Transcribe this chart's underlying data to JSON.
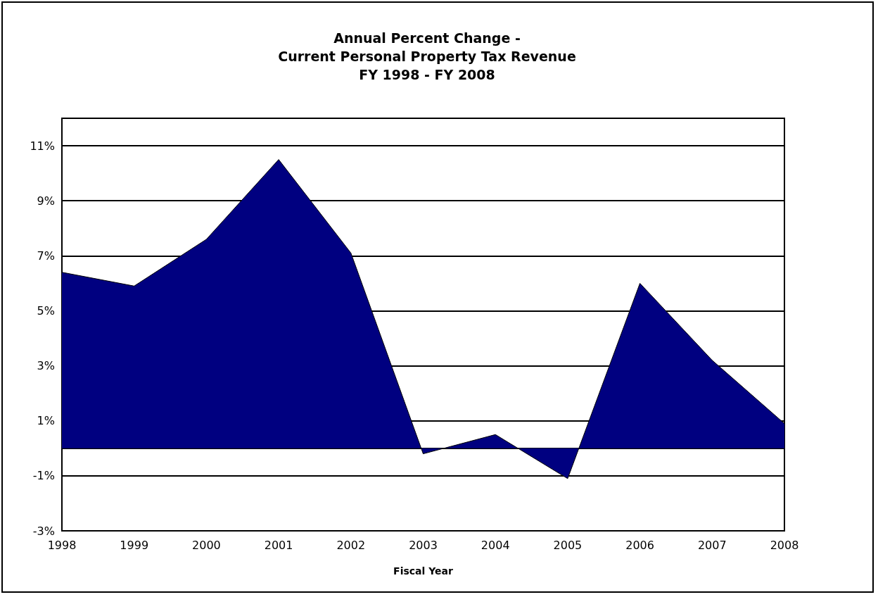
{
  "chart_data": {
    "type": "area",
    "title": "Annual Percent Change -\nCurrent Personal Property Tax Revenue\nFY 1998 - FY 2008",
    "xlabel": "Fiscal Year",
    "categories": [
      "1998",
      "1999",
      "2000",
      "2001",
      "2002",
      "2003",
      "2004",
      "2005",
      "2006",
      "2007",
      "2008"
    ],
    "series": [
      {
        "color": "#000080",
        "values": [
          6.4,
          5.9,
          7.6,
          10.5,
          7.1,
          -0.2,
          0.5,
          -1.1,
          6.0,
          3.2,
          0.9
        ]
      }
    ],
    "ylim": [
      -3,
      12
    ],
    "yticks": [
      {
        "value": -3,
        "label": "-3%"
      },
      {
        "value": -1,
        "label": "-1%"
      },
      {
        "value": 1,
        "label": "1%"
      },
      {
        "value": 3,
        "label": "3%"
      },
      {
        "value": 5,
        "label": "5%"
      },
      {
        "value": 7,
        "label": "7%"
      },
      {
        "value": 9,
        "label": "9%"
      },
      {
        "value": 11,
        "label": "11%"
      }
    ],
    "grid": "y",
    "marker": "none"
  }
}
